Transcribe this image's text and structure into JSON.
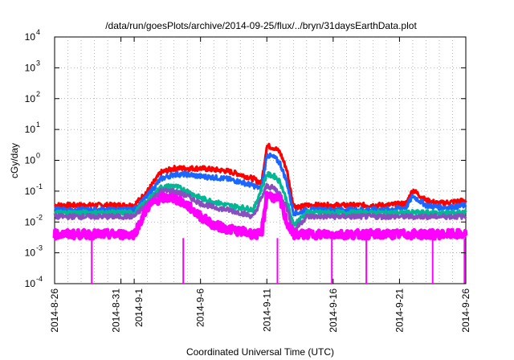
{
  "chart_data": {
    "type": "line",
    "title": "/data/run/goesPlots/archive/2014-09-25/flux/../bryn/31daysEarthData.plot",
    "xlabel": "Coordinated Universal Time (UTC)",
    "ylabel": "cGy/day",
    "yscale": "log",
    "ylim": [
      0.0001,
      10000
    ],
    "xlim": [
      "2014-08-26",
      "2014-09-26"
    ],
    "grid": true,
    "x_ticks": [
      "2014-8-26",
      "2014-8-31",
      "2014-9-1",
      "2014-9-6",
      "2014-9-11",
      "2014-9-16",
      "2014-9-21",
      "2014-9-26"
    ],
    "y_ticks": [
      "10-4",
      "10-3",
      "10-2",
      "10-1",
      "100",
      "101",
      "102",
      "103",
      "104"
    ],
    "series": [
      {
        "color": "#ff0000",
        "x": [
          "2014-08-26",
          "2014-08-28",
          "2014-08-30",
          "2014-09-01",
          "2014-09-02",
          "2014-09-03",
          "2014-09-04",
          "2014-09-05",
          "2014-09-06",
          "2014-09-07",
          "2014-09-08",
          "2014-09-09",
          "2014-09-10",
          "2014-09-10.6",
          "2014-09-11",
          "2014-09-11.6",
          "2014-09-12",
          "2014-09-12.5",
          "2014-09-13",
          "2014-09-13.5",
          "2014-09-14",
          "2014-09-16",
          "2014-09-18",
          "2014-09-20",
          "2014-09-21.5",
          "2014-09-22",
          "2014-09-23",
          "2014-09-24",
          "2014-09-25",
          "2014-09-26"
        ],
        "y": [
          0.035,
          0.035,
          0.035,
          0.035,
          0.1,
          0.4,
          0.55,
          0.55,
          0.55,
          0.5,
          0.45,
          0.35,
          0.25,
          0.18,
          3.0,
          2.5,
          1.8,
          0.5,
          0.035,
          0.03,
          0.035,
          0.035,
          0.035,
          0.035,
          0.04,
          0.11,
          0.05,
          0.04,
          0.045,
          0.05
        ]
      },
      {
        "color": "#1a66ff",
        "x": [
          "2014-08-26",
          "2014-08-28",
          "2014-08-30",
          "2014-09-01",
          "2014-09-02",
          "2014-09-03",
          "2014-09-04",
          "2014-09-05",
          "2014-09-06",
          "2014-09-07",
          "2014-09-08",
          "2014-09-09",
          "2014-09-10",
          "2014-09-10.6",
          "2014-09-11",
          "2014-09-11.6",
          "2014-09-12",
          "2014-09-12.5",
          "2014-09-13",
          "2014-09-13.5",
          "2014-09-14",
          "2014-09-16",
          "2014-09-18",
          "2014-09-20",
          "2014-09-21.5",
          "2014-09-22",
          "2014-09-23",
          "2014-09-24",
          "2014-09-25",
          "2014-09-26"
        ],
        "y": [
          0.025,
          0.025,
          0.025,
          0.025,
          0.07,
          0.25,
          0.35,
          0.35,
          0.3,
          0.28,
          0.25,
          0.2,
          0.15,
          0.12,
          1.5,
          1.2,
          0.8,
          0.2,
          0.02,
          0.02,
          0.025,
          0.025,
          0.025,
          0.025,
          0.03,
          0.07,
          0.035,
          0.03,
          0.03,
          0.035
        ]
      },
      {
        "color": "#00b894",
        "x": [
          "2014-08-26",
          "2014-08-30",
          "2014-09-01",
          "2014-09-02",
          "2014-09-03",
          "2014-09-04",
          "2014-09-05",
          "2014-09-06",
          "2014-09-07",
          "2014-09-08",
          "2014-09-09",
          "2014-09-10",
          "2014-09-11",
          "2014-09-11.6",
          "2014-09-12",
          "2014-09-12.5",
          "2014-09-13",
          "2014-09-14",
          "2014-09-18",
          "2014-09-22",
          "2014-09-26"
        ],
        "y": [
          0.02,
          0.02,
          0.02,
          0.05,
          0.13,
          0.15,
          0.1,
          0.06,
          0.045,
          0.035,
          0.03,
          0.025,
          0.35,
          0.3,
          0.2,
          0.05,
          0.008,
          0.02,
          0.02,
          0.02,
          0.02
        ]
      },
      {
        "color": "#8a4fbf",
        "x": [
          "2014-08-26",
          "2014-08-30",
          "2014-09-01",
          "2014-09-02",
          "2014-09-03",
          "2014-09-04",
          "2014-09-05",
          "2014-09-06",
          "2014-09-07",
          "2014-09-08",
          "2014-09-09",
          "2014-09-10",
          "2014-09-11",
          "2014-09-11.6",
          "2014-09-12",
          "2014-09-12.5",
          "2014-09-13",
          "2014-09-14",
          "2014-09-18",
          "2014-09-22",
          "2014-09-26"
        ],
        "y": [
          0.015,
          0.015,
          0.015,
          0.04,
          0.1,
          0.1,
          0.07,
          0.04,
          0.03,
          0.025,
          0.02,
          0.015,
          0.15,
          0.12,
          0.08,
          0.03,
          0.005,
          0.015,
          0.015,
          0.015,
          0.015
        ]
      },
      {
        "color": "#ff00ff",
        "x": [
          "2014-08-26",
          "2014-08-28",
          "2014-08-30",
          "2014-09-01",
          "2014-09-02",
          "2014-09-03",
          "2014-09-04",
          "2014-09-05",
          "2014-09-06",
          "2014-09-07",
          "2014-09-08",
          "2014-09-09",
          "2014-09-10",
          "2014-09-10.6",
          "2014-09-11",
          "2014-09-11.6",
          "2014-09-12",
          "2014-09-12.5",
          "2014-09-13",
          "2014-09-14",
          "2014-09-16",
          "2014-09-18",
          "2014-09-20",
          "2014-09-22",
          "2014-09-24",
          "2014-09-26"
        ],
        "y": [
          0.004,
          0.004,
          0.004,
          0.004,
          0.03,
          0.06,
          0.06,
          0.035,
          0.015,
          0.008,
          0.006,
          0.005,
          0.004,
          0.004,
          0.08,
          0.06,
          0.05,
          0.01,
          0.004,
          0.004,
          0.004,
          0.004,
          0.004,
          0.004,
          0.004,
          0.004
        ]
      }
    ],
    "dropouts": {
      "color": "#ff00ff",
      "x": [
        "2014-08-28.8",
        "2014-09-04.7",
        "2014-09-11.8",
        "2014-09-15.9",
        "2014-09-18.5",
        "2014-09-23.5",
        "2014-09-25.9"
      ],
      "y": 0.0001
    }
  }
}
